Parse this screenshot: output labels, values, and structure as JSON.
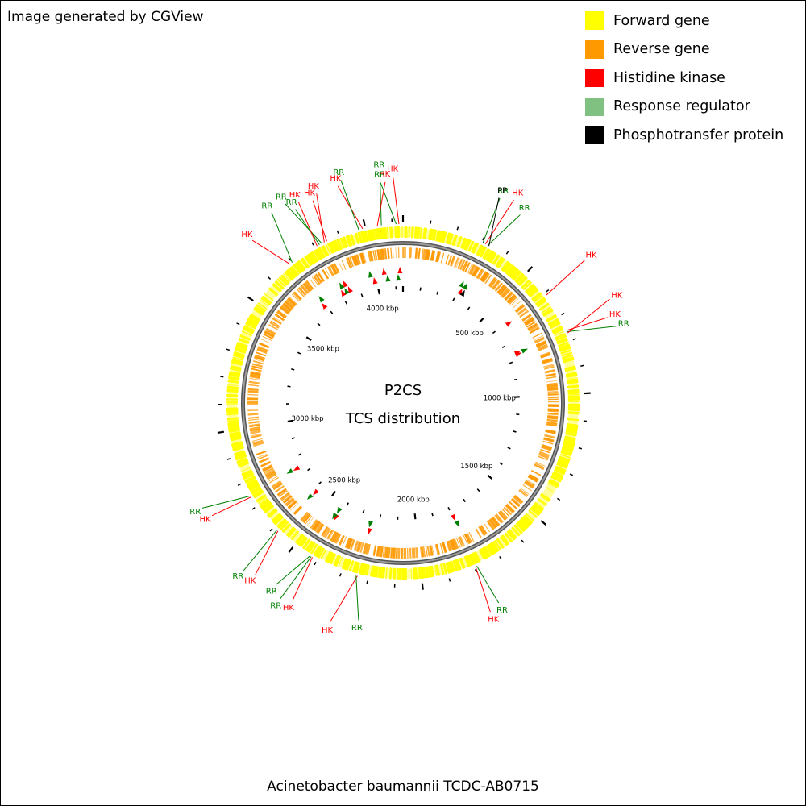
{
  "credit": "Image generated by CGView",
  "footer_title": "Acinetobacter baumannii TCDC-AB0715",
  "center_title": [
    "P2CS",
    "TCS distribution"
  ],
  "legend": [
    {
      "label": "Forward gene",
      "color": "#ffff00"
    },
    {
      "label": "Reverse gene",
      "color": "#ff9900"
    },
    {
      "label": "Histidine kinase",
      "color": "#ff0000"
    },
    {
      "label": "Response regulator",
      "color": "#80c080"
    },
    {
      "label": "Phosphotransfer protein",
      "color": "#000000"
    }
  ],
  "genome": {
    "length_kbp": 4140,
    "tick_labels_kbp": [
      500,
      1000,
      1500,
      2000,
      2500,
      3000,
      3500,
      4000
    ],
    "tick_label_suffix": "kbp"
  },
  "callouts": [
    {
      "label": "RR",
      "kbp": 4115,
      "color": "#008000"
    },
    {
      "label": "HK",
      "kbp": 4125,
      "color": "#ff0000"
    },
    {
      "label": "RR",
      "kbp": 4060,
      "color": "#008000"
    },
    {
      "label": "HK",
      "kbp": 4045,
      "color": "#ff0000"
    },
    {
      "label": "HK",
      "kbp": 3990,
      "color": "#ff0000"
    },
    {
      "label": "RR",
      "kbp": 3975,
      "color": "#008000"
    },
    {
      "label": "HK",
      "kbp": 3850,
      "color": "#ff0000"
    },
    {
      "label": "HK",
      "kbp": 3840,
      "color": "#ff0000"
    },
    {
      "label": "RR",
      "kbp": 3830,
      "color": "#008000"
    },
    {
      "label": "RR",
      "kbp": 3820,
      "color": "#008000"
    },
    {
      "label": "HK",
      "kbp": 3810,
      "color": "#ff0000"
    },
    {
      "label": "RR",
      "kbp": 3700,
      "color": "#008000"
    },
    {
      "label": "HK",
      "kbp": 3690,
      "color": "#ff0000"
    },
    {
      "label": "RR",
      "kbp": 305,
      "color": "#008000"
    },
    {
      "label": "HK",
      "kbp": 315,
      "color": "#ff0000"
    },
    {
      "label": "RR",
      "kbp": 325,
      "color": "#008000"
    },
    {
      "label": "PP",
      "kbp": 330,
      "color": "#000000"
    },
    {
      "label": "HK",
      "kbp": 610,
      "color": "#ff0000"
    },
    {
      "label": "HK",
      "kbp": 760,
      "color": "#ff0000"
    },
    {
      "label": "RR",
      "kbp": 765,
      "color": "#008000"
    },
    {
      "label": "HK",
      "kbp": 770,
      "color": "#ff0000"
    },
    {
      "label": "RR",
      "kbp": 1790,
      "color": "#008000"
    },
    {
      "label": "HK",
      "kbp": 1795,
      "color": "#ff0000"
    },
    {
      "label": "HK",
      "kbp": 2240,
      "color": "#ff0000"
    },
    {
      "label": "RR",
      "kbp": 2245,
      "color": "#008000"
    },
    {
      "label": "HK",
      "kbp": 2420,
      "color": "#ff0000"
    },
    {
      "label": "RR",
      "kbp": 2425,
      "color": "#008000"
    },
    {
      "label": "RR",
      "kbp": 2430,
      "color": "#008000"
    },
    {
      "label": "HK",
      "kbp": 2580,
      "color": "#ff0000"
    },
    {
      "label": "RR",
      "kbp": 2585,
      "color": "#008000"
    },
    {
      "label": "HK",
      "kbp": 2740,
      "color": "#ff0000"
    },
    {
      "label": "RR",
      "kbp": 2745,
      "color": "#008000"
    }
  ],
  "markers": [
    {
      "kbp": 4115,
      "color": "#008000"
    },
    {
      "kbp": 4125,
      "color": "#ff0000"
    },
    {
      "kbp": 4060,
      "color": "#008000"
    },
    {
      "kbp": 4045,
      "color": "#ff0000"
    },
    {
      "kbp": 3990,
      "color": "#ff0000"
    },
    {
      "kbp": 3975,
      "color": "#008000"
    },
    {
      "kbp": 3850,
      "color": "#ff0000"
    },
    {
      "kbp": 3840,
      "color": "#ff0000"
    },
    {
      "kbp": 3830,
      "color": "#008000"
    },
    {
      "kbp": 3820,
      "color": "#008000"
    },
    {
      "kbp": 3810,
      "color": "#ff0000"
    },
    {
      "kbp": 3700,
      "color": "#008000"
    },
    {
      "kbp": 3690,
      "color": "#ff0000"
    },
    {
      "kbp": 305,
      "color": "#008000"
    },
    {
      "kbp": 315,
      "color": "#ff0000"
    },
    {
      "kbp": 325,
      "color": "#008000"
    },
    {
      "kbp": 330,
      "color": "#000000"
    },
    {
      "kbp": 610,
      "color": "#ff0000"
    },
    {
      "kbp": 760,
      "color": "#ff0000"
    },
    {
      "kbp": 765,
      "color": "#008000"
    },
    {
      "kbp": 770,
      "color": "#ff0000"
    },
    {
      "kbp": 1790,
      "color": "#008000"
    },
    {
      "kbp": 1795,
      "color": "#ff0000"
    },
    {
      "kbp": 2240,
      "color": "#ff0000"
    },
    {
      "kbp": 2245,
      "color": "#008000"
    },
    {
      "kbp": 2420,
      "color": "#ff0000"
    },
    {
      "kbp": 2425,
      "color": "#008000"
    },
    {
      "kbp": 2430,
      "color": "#008000"
    },
    {
      "kbp": 2580,
      "color": "#ff0000"
    },
    {
      "kbp": 2585,
      "color": "#008000"
    },
    {
      "kbp": 2740,
      "color": "#ff0000"
    },
    {
      "kbp": 2745,
      "color": "#008000"
    }
  ]
}
